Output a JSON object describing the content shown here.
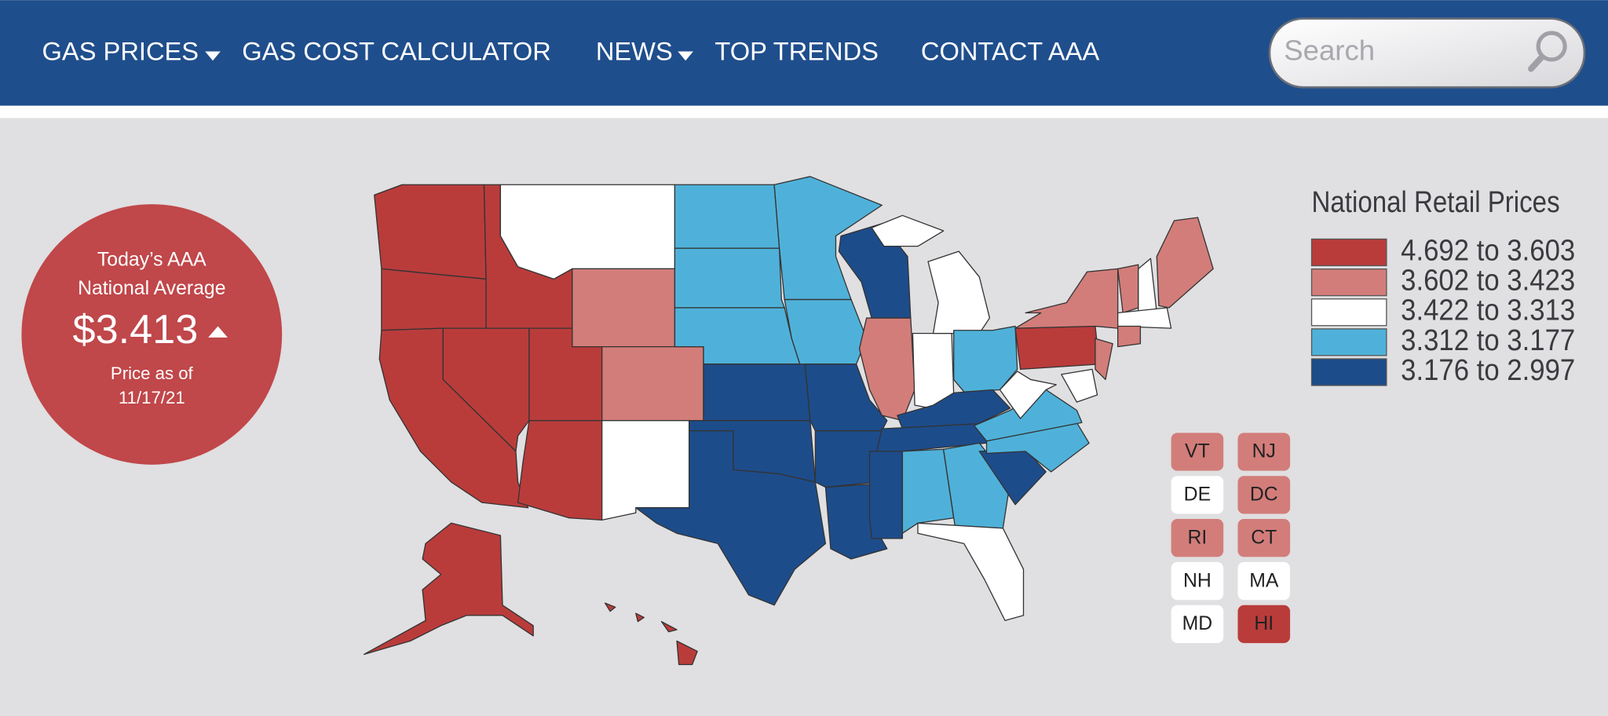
{
  "nav": {
    "items": [
      {
        "label": "GAS PRICES"
      },
      {
        "label": "GAS COST CALCULATOR"
      },
      {
        "label": "NEWS"
      },
      {
        "label": "TOP TRENDS"
      },
      {
        "label": "CONTACT AAA"
      }
    ],
    "search_placeholder": "Search"
  },
  "national_average": {
    "line1": "Today’s AAA",
    "line2": "National Average",
    "price": "$3.413",
    "as_of_label": "Price as of",
    "date": "11/17/21"
  },
  "legend": {
    "title": "National Retail Prices",
    "items": [
      {
        "label": "4.692 to 3.603",
        "color": "#b93c3b"
      },
      {
        "label": "3.602 to 3.423",
        "color": "#d27d7a"
      },
      {
        "label": "3.422 to 3.313",
        "color": "#ffffff"
      },
      {
        "label": "3.312 to 3.177",
        "color": "#4fb1d9"
      },
      {
        "label": "3.176 to 2.997",
        "color": "#1d4c8a"
      }
    ]
  },
  "small_states": [
    {
      "label": "VT",
      "color": "#d27d7a"
    },
    {
      "label": "NJ",
      "color": "#d27d7a"
    },
    {
      "label": "DE",
      "color": "#ffffff"
    },
    {
      "label": "DC",
      "color": "#d27d7a"
    },
    {
      "label": "RI",
      "color": "#d27d7a"
    },
    {
      "label": "CT",
      "color": "#d27d7a"
    },
    {
      "label": "NH",
      "color": "#ffffff"
    },
    {
      "label": "MA",
      "color": "#ffffff"
    },
    {
      "label": "MD",
      "color": "#ffffff"
    },
    {
      "label": "HI",
      "color": "#b93c3b"
    }
  ]
}
